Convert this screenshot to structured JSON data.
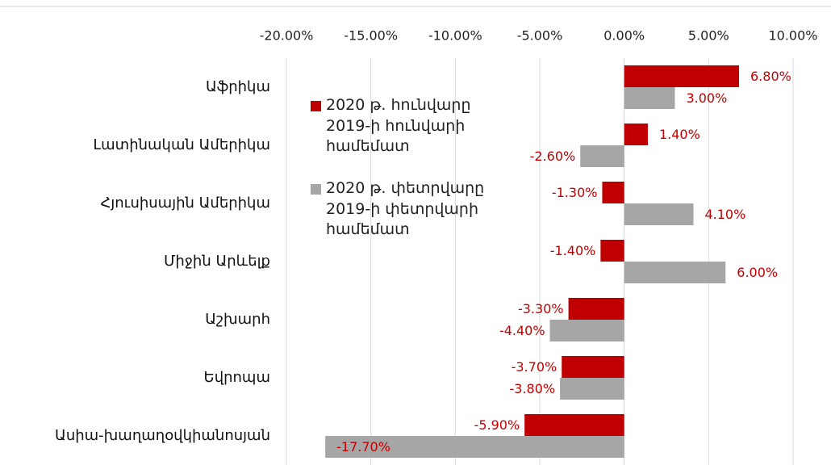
{
  "chart_data": {
    "type": "bar",
    "orientation": "horizontal",
    "categories": [
      "Աֆրիկա",
      "Լատինական Ամերիկա",
      "Հյուսիսային Ամերիկա",
      "Միջին Արևելք",
      "Աշխարհ",
      "Եվրոպա",
      "Ասիա-խաղաղօվկիանոսյան"
    ],
    "series": [
      {
        "name": "2020 թ. հունվարը 2019-ի հունվարի համեմատ",
        "color": "#c00000",
        "values": [
          6.8,
          1.4,
          -1.3,
          -1.4,
          -3.3,
          -3.7,
          -5.9
        ],
        "value_labels": [
          "6.80%",
          "1.40%",
          "-1.30%",
          "-1.40%",
          "-3.30%",
          "-3.70%",
          "-5.90%"
        ]
      },
      {
        "name": "2020 թ. փետրվարը 2019-ի փետրվարի համեմատ",
        "color": "#a6a6a6",
        "values": [
          3.0,
          -2.6,
          4.1,
          6.0,
          -4.4,
          -3.8,
          -17.7
        ],
        "value_labels": [
          "3.00%",
          "-2.60%",
          "4.10%",
          "6.00%",
          "-4.40%",
          "-3.80%",
          "-17.70%"
        ]
      }
    ],
    "xlim": [
      -20,
      10
    ],
    "xticks": [
      {
        "value": -20,
        "label": "-20.00%"
      },
      {
        "value": -15,
        "label": "-15.00%"
      },
      {
        "value": -10,
        "label": "-10.00%"
      },
      {
        "value": -5,
        "label": "-5.00%"
      },
      {
        "value": 0,
        "label": "0.00%"
      },
      {
        "value": 5,
        "label": "5.00%"
      },
      {
        "value": 10,
        "label": "10.00%"
      }
    ],
    "grid": true,
    "label_color": "#c00000",
    "legend": "upper left"
  }
}
